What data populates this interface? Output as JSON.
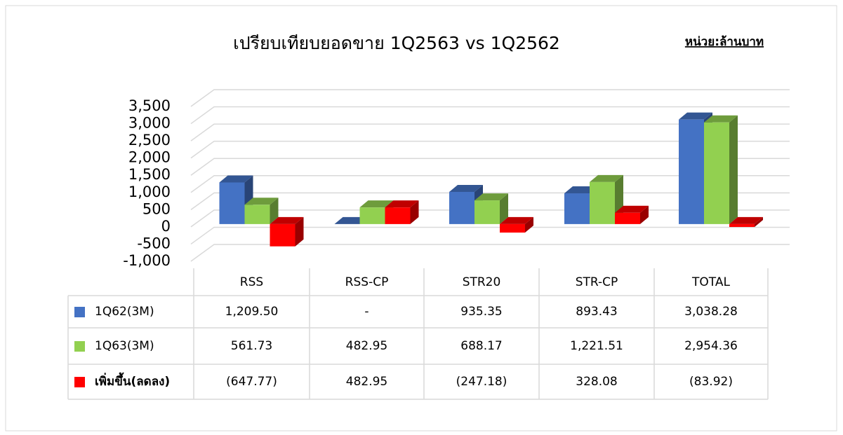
{
  "chart_data": {
    "type": "bar3d",
    "title": "เปรียบเทียบยอดขาย 1Q2563 vs 1Q2562",
    "unit_label": "หน่วย:ล้านบาท",
    "categories": [
      "RSS",
      "RSS-CP",
      "STR20",
      "STR-CP",
      "TOTAL"
    ],
    "series": [
      {
        "name": "1Q62(3M)",
        "color": "#4472c4",
        "values": [
          1209.5,
          0,
          935.35,
          893.43,
          3038.28
        ],
        "value_labels": [
          "1,209.50",
          "-",
          "935.35",
          "893.43",
          "3,038.28"
        ]
      },
      {
        "name": "1Q63(3M)",
        "color": "#92d050",
        "values": [
          561.73,
          482.95,
          688.17,
          1221.51,
          2954.36
        ],
        "value_labels": [
          "561.73",
          "482.95",
          "688.17",
          "1,221.51",
          "2,954.36"
        ]
      },
      {
        "name": "เพิ่มขึ้น(ลดลง)",
        "color": "#ff0000",
        "values": [
          -647.77,
          482.95,
          -247.18,
          328.08,
          -83.92
        ],
        "value_labels": [
          "(647.77)",
          "482.95",
          "(247.18)",
          "328.08",
          "(83.92)"
        ]
      }
    ],
    "ylim": [
      -1000,
      3500
    ],
    "yticks": [
      {
        "value": -1000,
        "label": "-1,000"
      },
      -500,
      0,
      500,
      {
        "value": 1000,
        "label": "1,000"
      },
      {
        "value": 1500,
        "label": "1,500"
      },
      {
        "value": 2000,
        "label": "2,000"
      },
      {
        "value": 2500,
        "label": "2,500"
      },
      {
        "value": 3000,
        "label": "3,000"
      },
      {
        "value": 3500,
        "label": "3,500"
      }
    ],
    "grid": true
  }
}
